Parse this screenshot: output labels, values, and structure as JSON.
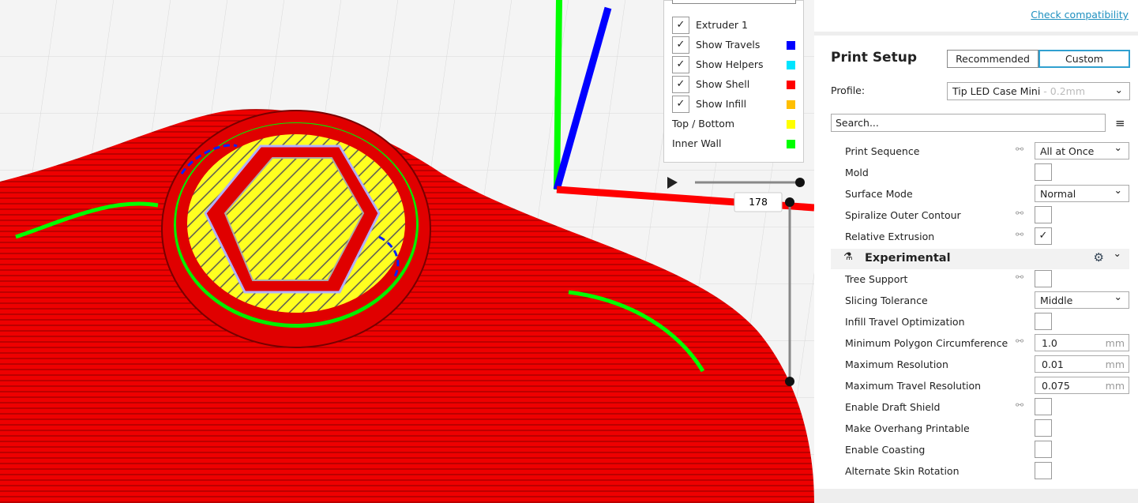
{
  "link": "Check compatibility",
  "legend": {
    "items": [
      {
        "label": "Extruder 1",
        "checked": true
      },
      {
        "label": "Show Travels",
        "checked": true,
        "color": "#0000ff"
      },
      {
        "label": "Show Helpers",
        "checked": true,
        "color": "#00e5ff"
      },
      {
        "label": "Show Shell",
        "checked": true,
        "color": "#ff0000"
      },
      {
        "label": "Show Infill",
        "checked": true,
        "color": "#ffbf00"
      },
      {
        "label": "Top / Bottom",
        "color": "#ffff00"
      },
      {
        "label": "Inner Wall",
        "color": "#00ff00"
      }
    ]
  },
  "layer": "178",
  "print_setup": {
    "title": "Print Setup",
    "tabs": [
      "Recommended",
      "Custom"
    ],
    "profile_label": "Profile:",
    "profile": "Tip LED Case Mini",
    "profile_suffix": "- 0.2mm",
    "search": "Search..."
  },
  "settings": [
    {
      "label": "Print Sequence",
      "linked": true,
      "value": "All at Once"
    },
    {
      "label": "Mold",
      "checked": false
    },
    {
      "label": "Surface Mode",
      "value": "Normal"
    },
    {
      "label": "Spiralize Outer Contour",
      "linked": true,
      "checked": false
    },
    {
      "label": "Relative Extrusion",
      "linked": true,
      "checked": true
    }
  ],
  "section": "Experimental",
  "experimental": [
    {
      "label": "Tree Support",
      "linked": true,
      "checked": false
    },
    {
      "label": "Slicing Tolerance",
      "value": "Middle"
    },
    {
      "label": "Infill Travel Optimization",
      "checked": false
    },
    {
      "label": "Minimum Polygon Circumference",
      "linked": true,
      "value": "1.0",
      "unit": "mm"
    },
    {
      "label": "Maximum Resolution",
      "value": "0.01",
      "unit": "mm"
    },
    {
      "label": "Maximum Travel Resolution",
      "value": "0.075",
      "unit": "mm"
    },
    {
      "label": "Enable Draft Shield",
      "linked": true,
      "checked": false
    },
    {
      "label": "Make Overhang Printable",
      "checked": false
    },
    {
      "label": "Enable Coasting",
      "checked": false
    },
    {
      "label": "Alternate Skin Rotation",
      "checked": false
    }
  ]
}
